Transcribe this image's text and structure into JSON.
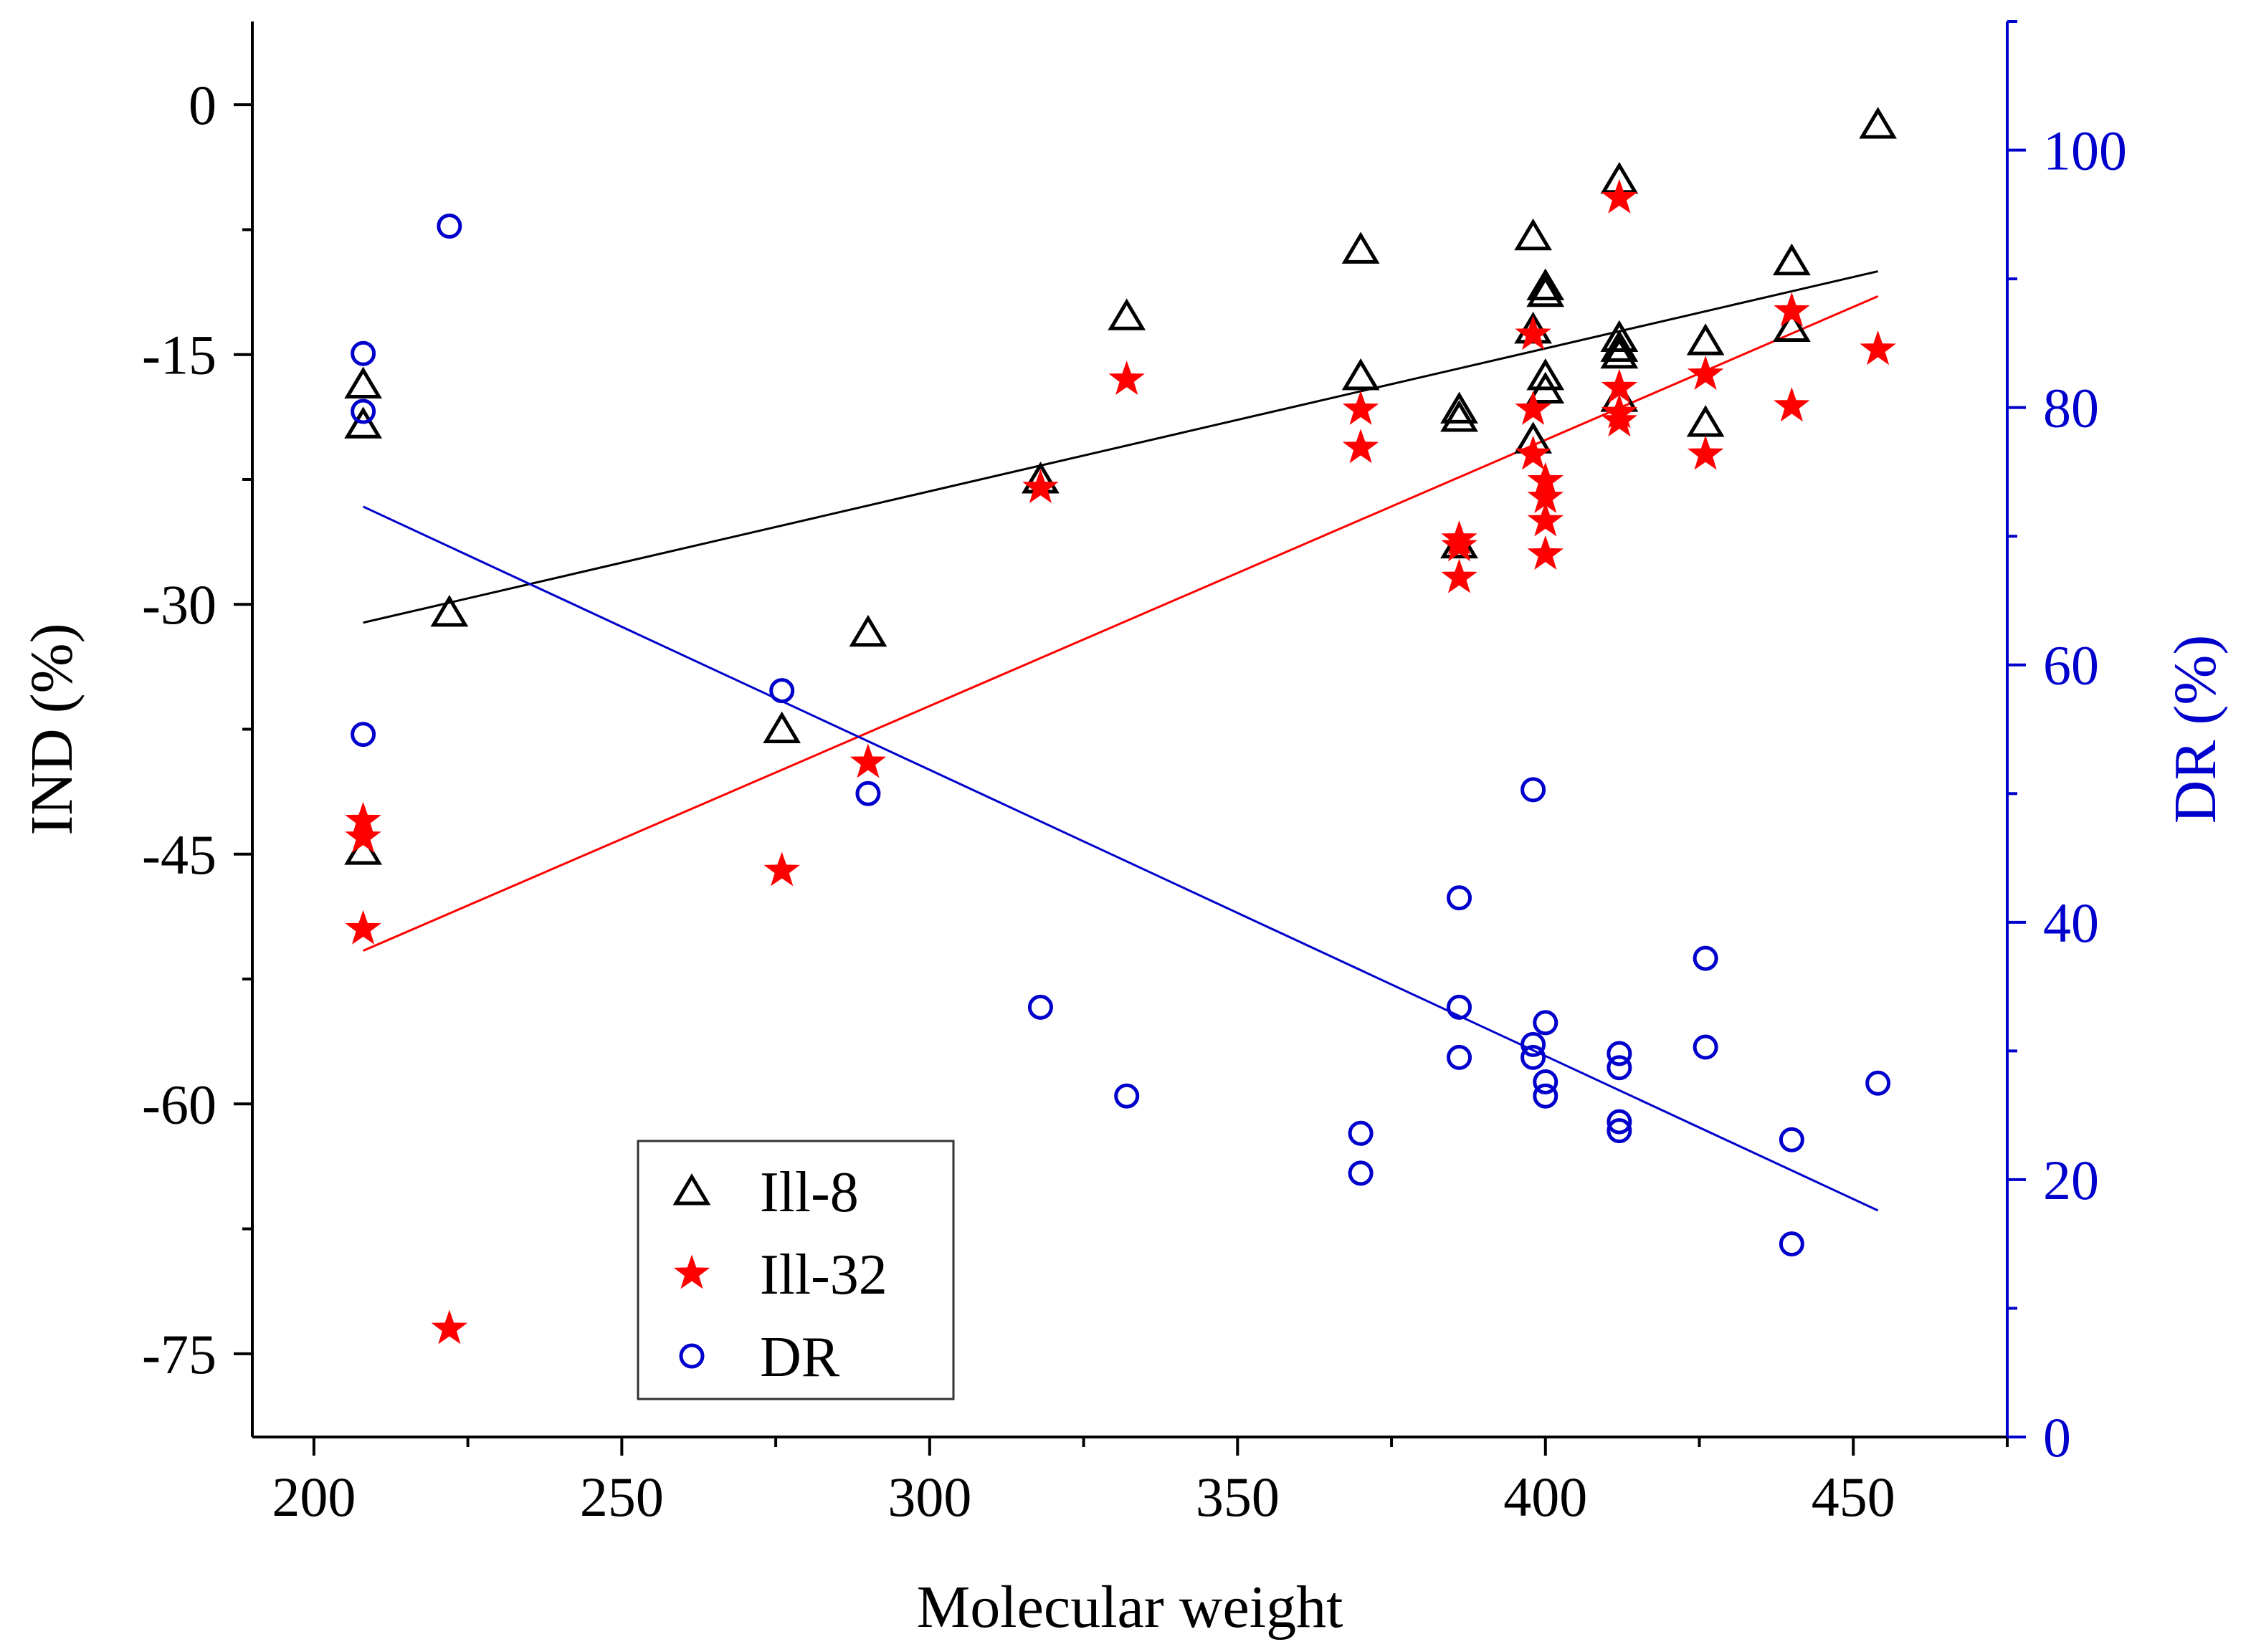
{
  "chart_data": {
    "type": "scatter",
    "title": "",
    "xlabel": "Molecular weight",
    "ylabel_left": "IND (%)",
    "ylabel_right": "DR (%)",
    "xlim": [
      190,
      475
    ],
    "ylim_left": [
      -80,
      5
    ],
    "ylim_right": [
      0,
      110
    ],
    "xticks": [
      200,
      250,
      300,
      350,
      400,
      450
    ],
    "yticks_left": [
      0,
      -15,
      -30,
      -45,
      -60,
      -75
    ],
    "yticks_right": [
      0,
      20,
      40,
      60,
      80,
      100
    ],
    "grid": false,
    "legend_position": "bottom-left",
    "colors": {
      "ill8": "#000000",
      "ill32": "#ff0000",
      "dr": "#0000cc",
      "right_axis": "#0000cc"
    },
    "series": [
      {
        "name": "Ill-8",
        "axis": "left",
        "marker": "open-triangle",
        "points": [
          [
            208,
            -16.8
          ],
          [
            208,
            -19.2
          ],
          [
            208,
            -44.8
          ],
          [
            222,
            -30.5
          ],
          [
            276,
            -37.5
          ],
          [
            290,
            -31.7
          ],
          [
            318,
            -22.5
          ],
          [
            332,
            -12.7
          ],
          [
            370,
            -8.7
          ],
          [
            370,
            -16.3
          ],
          [
            386,
            -18.3
          ],
          [
            386,
            -18.8
          ],
          [
            386,
            -26.4
          ],
          [
            398,
            -7.9
          ],
          [
            398,
            -13.5
          ],
          [
            398,
            -20.1
          ],
          [
            400,
            -10.9
          ],
          [
            400,
            -11.3
          ],
          [
            400,
            -16.3
          ],
          [
            400,
            -17.1
          ],
          [
            412,
            -4.5
          ],
          [
            412,
            -14
          ],
          [
            412,
            -14.6
          ],
          [
            412,
            -15
          ],
          [
            412,
            -17.6
          ],
          [
            426,
            -14.2
          ],
          [
            426,
            -19.1
          ],
          [
            440,
            -9.4
          ],
          [
            440,
            -13.4
          ],
          [
            454,
            -1.2
          ]
        ]
      },
      {
        "name": "Ill-32",
        "axis": "left",
        "marker": "filled-star",
        "points": [
          [
            208,
            -43
          ],
          [
            208,
            -44
          ],
          [
            208,
            -49.5
          ],
          [
            222,
            -73.5
          ],
          [
            276,
            -46
          ],
          [
            290,
            -39.5
          ],
          [
            318,
            -23
          ],
          [
            332,
            -16.5
          ],
          [
            370,
            -18.3
          ],
          [
            370,
            -20.6
          ],
          [
            386,
            -26.1
          ],
          [
            386,
            -26.5
          ],
          [
            386,
            -28.4
          ],
          [
            398,
            -13.8
          ],
          [
            398,
            -18.3
          ],
          [
            398,
            -21
          ],
          [
            400,
            -22.6
          ],
          [
            400,
            -23.6
          ],
          [
            400,
            -25
          ],
          [
            400,
            -27
          ],
          [
            412,
            -5.6
          ],
          [
            412,
            -17
          ],
          [
            412,
            -18.5
          ],
          [
            412,
            -19
          ],
          [
            426,
            -16.2
          ],
          [
            426,
            -21
          ],
          [
            440,
            -12.4
          ],
          [
            440,
            -18.1
          ],
          [
            454,
            -14.7
          ]
        ]
      },
      {
        "name": "DR",
        "axis": "right",
        "marker": "open-circle",
        "points": [
          [
            208,
            84.2
          ],
          [
            208,
            79.7
          ],
          [
            208,
            54.6
          ],
          [
            222,
            94.1
          ],
          [
            276,
            58
          ],
          [
            290,
            50
          ],
          [
            318,
            33.4
          ],
          [
            332,
            26.5
          ],
          [
            370,
            23.6
          ],
          [
            370,
            20.5
          ],
          [
            386,
            41.9
          ],
          [
            386,
            33.4
          ],
          [
            386,
            29.5
          ],
          [
            398,
            50.3
          ],
          [
            398,
            30.5
          ],
          [
            398,
            29.5
          ],
          [
            400,
            32.2
          ],
          [
            400,
            27.6
          ],
          [
            400,
            26.5
          ],
          [
            412,
            29.8
          ],
          [
            412,
            28.7
          ],
          [
            412,
            24.5
          ],
          [
            412,
            23.8
          ],
          [
            426,
            37.2
          ],
          [
            426,
            30.3
          ],
          [
            440,
            23.1
          ],
          [
            440,
            15
          ],
          [
            454,
            27.5
          ]
        ]
      }
    ],
    "trendlines": [
      {
        "series": "Ill-8",
        "axis": "left",
        "x": [
          208,
          454
        ],
        "y": [
          -31.1,
          -10
        ]
      },
      {
        "series": "Ill-32",
        "axis": "left",
        "x": [
          208,
          454
        ],
        "y": [
          -50.8,
          -11.5
        ]
      },
      {
        "series": "DR",
        "axis": "right",
        "x": [
          208,
          454
        ],
        "y": [
          72.3,
          17.6
        ]
      }
    ],
    "legend": [
      {
        "label": "Ill-8",
        "marker": "open-triangle"
      },
      {
        "label": "Ill-32",
        "marker": "filled-star"
      },
      {
        "label": "DR",
        "marker": "open-circle"
      }
    ]
  }
}
